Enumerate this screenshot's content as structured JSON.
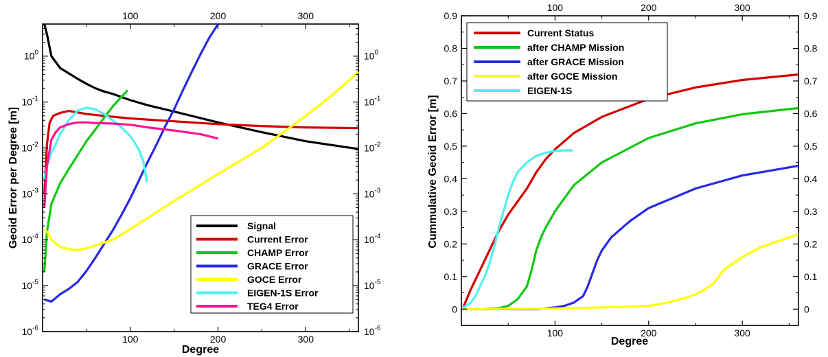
{
  "chart_data": [
    {
      "type": "line",
      "xlabel": "Degree",
      "ylabel": "Geoid Error per Degree [m]",
      "xlim": [
        0,
        360
      ],
      "ylim": [
        1e-06,
        5
      ],
      "y_scale": "log",
      "x_ticks": [
        "100",
        "200",
        "300"
      ],
      "y_ticks": [
        "10-6",
        "10-5",
        "10-4",
        "10-3",
        "10-2",
        "10-1",
        "100"
      ],
      "legend_position": "bottom-right",
      "grid": false,
      "series": [
        {
          "name": "Signal",
          "color": "#000000",
          "x": [
            2,
            5,
            10,
            20,
            30,
            40,
            50,
            60,
            70,
            80,
            100,
            120,
            150,
            200,
            250,
            300,
            360
          ],
          "y": [
            5,
            3,
            1.0,
            0.55,
            0.42,
            0.32,
            0.25,
            0.2,
            0.17,
            0.15,
            0.11,
            0.085,
            0.062,
            0.036,
            0.022,
            0.014,
            0.0095
          ]
        },
        {
          "name": "Current Error",
          "color": "#d40000",
          "x": [
            2,
            5,
            8,
            12,
            20,
            30,
            50,
            70,
            100,
            150,
            200,
            250,
            300,
            360
          ],
          "y": [
            0.001,
            0.012,
            0.035,
            0.05,
            0.058,
            0.064,
            0.055,
            0.05,
            0.044,
            0.038,
            0.033,
            0.03,
            0.028,
            0.027
          ]
        },
        {
          "name": "CHAMP Error",
          "color": "#10c810",
          "x": [
            2,
            5,
            10,
            20,
            30,
            40,
            50,
            60,
            70,
            80,
            90,
            97
          ],
          "y": [
            2e-05,
            0.00015,
            0.0006,
            0.0017,
            0.0035,
            0.007,
            0.014,
            0.025,
            0.045,
            0.08,
            0.13,
            0.18
          ]
        },
        {
          "name": "GRACE Error",
          "color": "#2828e8",
          "x": [
            2,
            10,
            20,
            30,
            40,
            50,
            60,
            70,
            80,
            90,
            100,
            110,
            120,
            130,
            140,
            150,
            160,
            170,
            180,
            190,
            200
          ],
          "y": [
            5e-06,
            4.5e-06,
            6.5e-06,
            8.5e-06,
            1.2e-05,
            2.1e-05,
            4e-05,
            8e-05,
            0.00016,
            0.00035,
            0.0008,
            0.002,
            0.005,
            0.012,
            0.03,
            0.07,
            0.18,
            0.45,
            1.1,
            2.5,
            5
          ]
        },
        {
          "name": "GOCE Error",
          "color": "#ffff00",
          "x": [
            2,
            5,
            10,
            20,
            30,
            40,
            50,
            60,
            80,
            100,
            120,
            150,
            200,
            250,
            300,
            330,
            360
          ],
          "y": [
            0.00017,
            0.00015,
            0.0001,
            7e-05,
            6.2e-05,
            6e-05,
            6.5e-05,
            7.5e-05,
            0.0001,
            0.00017,
            0.0003,
            0.0007,
            0.0027,
            0.01,
            0.05,
            0.14,
            0.45
          ]
        },
        {
          "name": "EIGEN-1S Error",
          "color": "#50f0f0",
          "x": [
            2,
            5,
            10,
            15,
            20,
            30,
            40,
            50,
            60,
            70,
            80,
            90,
            100,
            105,
            110,
            115,
            119
          ],
          "y": [
            0.002,
            0.004,
            0.008,
            0.012,
            0.02,
            0.04,
            0.065,
            0.075,
            0.07,
            0.055,
            0.04,
            0.028,
            0.018,
            0.013,
            0.009,
            0.005,
            0.0018
          ]
        },
        {
          "name": "TEG4 Error",
          "color": "#ff1493",
          "x": [
            2,
            5,
            10,
            15,
            20,
            30,
            40,
            50,
            60,
            80,
            100,
            120,
            150,
            180,
            200
          ],
          "y": [
            0.0005,
            0.004,
            0.015,
            0.022,
            0.028,
            0.033,
            0.036,
            0.036,
            0.035,
            0.034,
            0.032,
            0.028,
            0.024,
            0.02,
            0.016
          ]
        }
      ]
    },
    {
      "type": "line",
      "xlabel": "Degree",
      "ylabel": "Cummulative Geoid Error [m]",
      "xlim": [
        0,
        360
      ],
      "ylim": [
        -0.05,
        0.9
      ],
      "x_ticks": [
        "100",
        "200",
        "300"
      ],
      "y_ticks": [
        "0",
        "0.1",
        "0.2",
        "0.3",
        "0.4",
        "0.5",
        "0.6",
        "0.7",
        "0.8",
        "0.9"
      ],
      "legend_position": "top-left",
      "grid": false,
      "series": [
        {
          "name": "Current Status",
          "color": "#d40000",
          "x": [
            2,
            10,
            20,
            30,
            40,
            50,
            60,
            70,
            80,
            90,
            100,
            120,
            150,
            200,
            250,
            300,
            360
          ],
          "y": [
            0.005,
            0.06,
            0.12,
            0.18,
            0.24,
            0.29,
            0.33,
            0.37,
            0.42,
            0.46,
            0.49,
            0.54,
            0.59,
            0.645,
            0.68,
            0.703,
            0.72
          ]
        },
        {
          "name": "after CHAMP Mission",
          "color": "#10c810",
          "x": [
            2,
            20,
            40,
            50,
            60,
            70,
            75,
            80,
            85,
            90,
            100,
            120,
            150,
            200,
            250,
            300,
            360
          ],
          "y": [
            0,
            0,
            0.003,
            0.01,
            0.03,
            0.07,
            0.12,
            0.18,
            0.22,
            0.25,
            0.3,
            0.38,
            0.45,
            0.525,
            0.57,
            0.598,
            0.617
          ]
        },
        {
          "name": "after GRACE Mission",
          "color": "#2828e8",
          "x": [
            2,
            80,
            100,
            110,
            120,
            130,
            135,
            140,
            145,
            150,
            160,
            180,
            200,
            250,
            300,
            360
          ],
          "y": [
            0,
            0,
            0.005,
            0.01,
            0.02,
            0.04,
            0.07,
            0.11,
            0.15,
            0.18,
            0.22,
            0.27,
            0.31,
            0.37,
            0.41,
            0.44
          ]
        },
        {
          "name": "after GOCE Mission",
          "color": "#ffff00",
          "x": [
            2,
            100,
            150,
            200,
            220,
            240,
            250,
            260,
            265,
            270,
            280,
            300,
            320,
            340,
            360
          ],
          "y": [
            0,
            0.002,
            0.005,
            0.01,
            0.02,
            0.035,
            0.045,
            0.06,
            0.07,
            0.08,
            0.12,
            0.16,
            0.19,
            0.21,
            0.23
          ]
        },
        {
          "name": "EIGEN-1S",
          "color": "#50f0f0",
          "x": [
            2,
            10,
            15,
            20,
            25,
            30,
            35,
            40,
            45,
            50,
            55,
            60,
            70,
            80,
            90,
            100,
            110,
            119
          ],
          "y": [
            0.005,
            0.02,
            0.04,
            0.07,
            0.1,
            0.14,
            0.19,
            0.25,
            0.3,
            0.35,
            0.39,
            0.42,
            0.45,
            0.47,
            0.48,
            0.485,
            0.487,
            0.487
          ]
        }
      ]
    }
  ]
}
